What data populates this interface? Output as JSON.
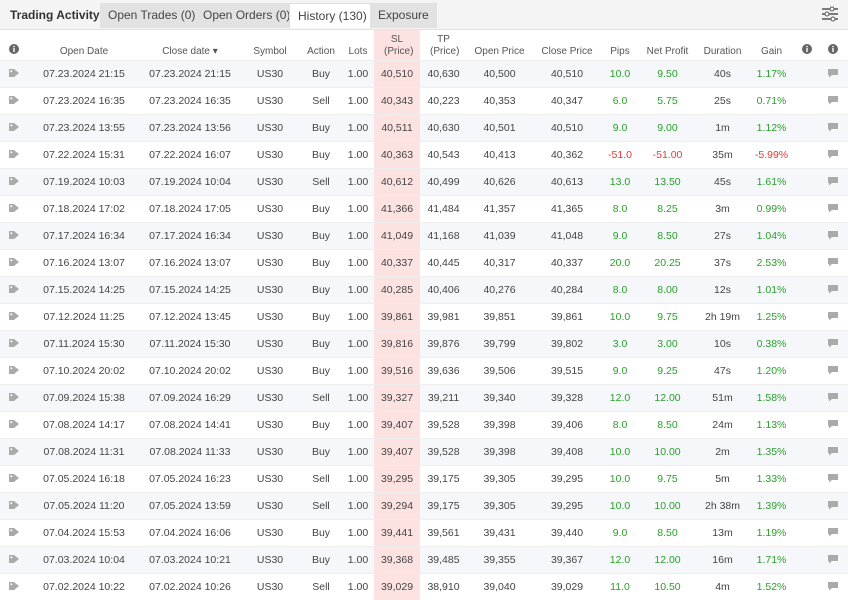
{
  "tabs": {
    "title": "Trading Activity",
    "items": [
      "Open Trades (0)",
      "Open Orders (0)",
      "History (130)",
      "Exposure"
    ],
    "active": 2
  },
  "table": {
    "columns": [
      "Open Date",
      "Close date",
      "Symbol",
      "Action",
      "Lots",
      "SL (Price)",
      "TP (Price)",
      "Open Price",
      "Close Price",
      "Pips",
      "Net Profit",
      "Duration",
      "Gain"
    ],
    "rows": [
      [
        "07.23.2024 21:15",
        "07.23.2024 21:15",
        "US30",
        "Buy",
        "1.00",
        "40,510",
        "40,630",
        "40,500",
        "40,510",
        "10.0",
        "9.50",
        "40s",
        "1.17%"
      ],
      [
        "07.23.2024 16:35",
        "07.23.2024 16:35",
        "US30",
        "Sell",
        "1.00",
        "40,343",
        "40,223",
        "40,353",
        "40,347",
        "6.0",
        "5.75",
        "25s",
        "0.71%"
      ],
      [
        "07.23.2024 13:55",
        "07.23.2024 13:56",
        "US30",
        "Buy",
        "1.00",
        "40,511",
        "40,630",
        "40,501",
        "40,510",
        "9.0",
        "9.00",
        "1m",
        "1.12%"
      ],
      [
        "07.22.2024 15:31",
        "07.22.2024 16:07",
        "US30",
        "Buy",
        "1.00",
        "40,363",
        "40,543",
        "40,413",
        "40,362",
        "-51.0",
        "-51.00",
        "35m",
        "-5.99%"
      ],
      [
        "07.19.2024 10:03",
        "07.19.2024 10:04",
        "US30",
        "Sell",
        "1.00",
        "40,612",
        "40,499",
        "40,626",
        "40,613",
        "13.0",
        "13.50",
        "45s",
        "1.61%"
      ],
      [
        "07.18.2024 17:02",
        "07.18.2024 17:05",
        "US30",
        "Buy",
        "1.00",
        "41,366",
        "41,484",
        "41,357",
        "41,365",
        "8.0",
        "8.25",
        "3m",
        "0.99%"
      ],
      [
        "07.17.2024 16:34",
        "07.17.2024 16:34",
        "US30",
        "Buy",
        "1.00",
        "41,049",
        "41,168",
        "41,039",
        "41,048",
        "9.0",
        "8.50",
        "27s",
        "1.04%"
      ],
      [
        "07.16.2024 13:07",
        "07.16.2024 13:07",
        "US30",
        "Buy",
        "1.00",
        "40,337",
        "40,445",
        "40,317",
        "40,337",
        "20.0",
        "20.25",
        "37s",
        "2.53%"
      ],
      [
        "07.15.2024 14:25",
        "07.15.2024 14:25",
        "US30",
        "Buy",
        "1.00",
        "40,285",
        "40,406",
        "40,276",
        "40,284",
        "8.0",
        "8.00",
        "12s",
        "1.01%"
      ],
      [
        "07.12.2024 11:25",
        "07.12.2024 13:45",
        "US30",
        "Buy",
        "1.00",
        "39,861",
        "39,981",
        "39,851",
        "39,861",
        "10.0",
        "9.75",
        "2h 19m",
        "1.25%"
      ],
      [
        "07.11.2024 15:30",
        "07.11.2024 15:30",
        "US30",
        "Buy",
        "1.00",
        "39,816",
        "39,876",
        "39,799",
        "39,802",
        "3.0",
        "3.00",
        "10s",
        "0.38%"
      ],
      [
        "07.10.2024 20:02",
        "07.10.2024 20:02",
        "US30",
        "Buy",
        "1.00",
        "39,516",
        "39,636",
        "39,506",
        "39,515",
        "9.0",
        "9.25",
        "47s",
        "1.20%"
      ],
      [
        "07.09.2024 15:38",
        "07.09.2024 16:29",
        "US30",
        "Sell",
        "1.00",
        "39,327",
        "39,211",
        "39,340",
        "39,328",
        "12.0",
        "12.00",
        "51m",
        "1.58%"
      ],
      [
        "07.08.2024 14:17",
        "07.08.2024 14:41",
        "US30",
        "Buy",
        "1.00",
        "39,407",
        "39,528",
        "39,398",
        "39,406",
        "8.0",
        "8.50",
        "24m",
        "1.13%"
      ],
      [
        "07.08.2024 11:31",
        "07.08.2024 11:33",
        "US30",
        "Buy",
        "1.00",
        "39,407",
        "39,528",
        "39,398",
        "39,408",
        "10.0",
        "10.00",
        "2m",
        "1.35%"
      ],
      [
        "07.05.2024 16:18",
        "07.05.2024 16:23",
        "US30",
        "Sell",
        "1.00",
        "39,295",
        "39,175",
        "39,305",
        "39,295",
        "10.0",
        "9.75",
        "5m",
        "1.33%"
      ],
      [
        "07.05.2024 11:20",
        "07.05.2024 13:59",
        "US30",
        "Sell",
        "1.00",
        "39,294",
        "39,175",
        "39,305",
        "39,295",
        "10.0",
        "10.00",
        "2h 38m",
        "1.39%"
      ],
      [
        "07.04.2024 15:53",
        "07.04.2024 16:06",
        "US30",
        "Buy",
        "1.00",
        "39,441",
        "39,561",
        "39,431",
        "39,440",
        "9.0",
        "8.50",
        "13m",
        "1.19%"
      ],
      [
        "07.03.2024 10:04",
        "07.03.2024 10:21",
        "US30",
        "Buy",
        "1.00",
        "39,368",
        "39,485",
        "39,355",
        "39,367",
        "12.0",
        "12.00",
        "16m",
        "1.71%"
      ],
      [
        "07.02.2024 10:22",
        "07.02.2024 10:26",
        "US30",
        "Sell",
        "1.00",
        "39,029",
        "38,910",
        "39,040",
        "39,029",
        "11.0",
        "10.50",
        "4m",
        "1.52%"
      ]
    ]
  }
}
